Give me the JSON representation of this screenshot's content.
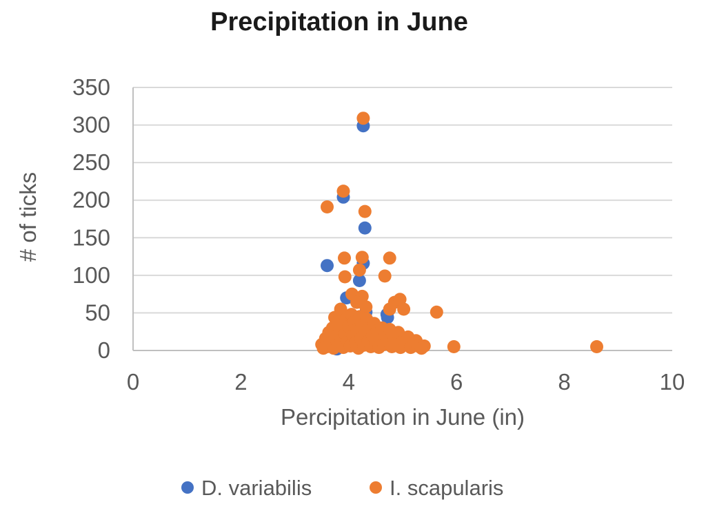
{
  "title": "Precipitation in June",
  "colors": {
    "title_text": "#1a1a1a",
    "axis_text": "#595959",
    "gridline": "#d9d9d9",
    "axis_line": "#bfbfbf",
    "background": "#ffffff",
    "series_blue": "#4472C4",
    "series_orange": "#ED7D31"
  },
  "legend": {
    "items": [
      {
        "label": "D. variabilis",
        "color": "#4472C4"
      },
      {
        "label": "I. scapularis",
        "color": "#ED7D31"
      }
    ]
  },
  "chart_data": {
    "type": "scatter",
    "title": "Precipitation in June",
    "xlabel": "Percipitation in June (in)",
    "ylabel": "# of ticks",
    "xlim": [
      0,
      10
    ],
    "ylim": [
      0,
      350
    ],
    "x_ticks": [
      0,
      2,
      4,
      6,
      8,
      10
    ],
    "y_ticks": [
      0,
      50,
      100,
      150,
      200,
      250,
      300,
      350
    ],
    "grid": "horizontal",
    "legend_position": "bottom",
    "series": [
      {
        "name": "D. variabilis",
        "color": "#4472C4",
        "points": [
          [
            4.27,
            299
          ],
          [
            3.9,
            204
          ],
          [
            4.3,
            163
          ],
          [
            4.27,
            116
          ],
          [
            3.6,
            113
          ],
          [
            4.2,
            93
          ],
          [
            3.96,
            70
          ],
          [
            4.32,
            51
          ],
          [
            4.71,
            48
          ],
          [
            4.72,
            44
          ],
          [
            3.9,
            42
          ],
          [
            4.02,
            31
          ],
          [
            4.91,
            13
          ],
          [
            3.78,
            2
          ]
        ]
      },
      {
        "name": "I. scapularis",
        "color": "#ED7D31",
        "points": [
          [
            4.27,
            309
          ],
          [
            3.9,
            212
          ],
          [
            3.6,
            191
          ],
          [
            4.3,
            185
          ],
          [
            4.25,
            124
          ],
          [
            3.92,
            123
          ],
          [
            4.76,
            123
          ],
          [
            4.2,
            107
          ],
          [
            4.67,
            99
          ],
          [
            3.93,
            98
          ],
          [
            4.06,
            75
          ],
          [
            4.25,
            72
          ],
          [
            4.15,
            64
          ],
          [
            4.85,
            64
          ],
          [
            4.95,
            68
          ],
          [
            4.32,
            58
          ],
          [
            3.85,
            55
          ],
          [
            4.76,
            55
          ],
          [
            5.02,
            55
          ],
          [
            3.74,
            44
          ],
          [
            5.63,
            51
          ],
          [
            5.25,
            13
          ],
          [
            5.4,
            6
          ],
          [
            5.95,
            5
          ],
          [
            8.6,
            5
          ],
          [
            3.5,
            8
          ],
          [
            3.53,
            3
          ],
          [
            3.57,
            16
          ],
          [
            3.6,
            5
          ],
          [
            3.63,
            24
          ],
          [
            3.66,
            10
          ],
          [
            3.7,
            30
          ],
          [
            3.72,
            3
          ],
          [
            3.75,
            18
          ],
          [
            3.78,
            38
          ],
          [
            3.8,
            8
          ],
          [
            3.83,
            27
          ],
          [
            3.86,
            14
          ],
          [
            3.88,
            35
          ],
          [
            3.9,
            4
          ],
          [
            3.93,
            22
          ],
          [
            3.95,
            42
          ],
          [
            3.98,
            12
          ],
          [
            4.0,
            32
          ],
          [
            4.03,
            6
          ],
          [
            4.05,
            48
          ],
          [
            4.08,
            20
          ],
          [
            4.1,
            38
          ],
          [
            4.12,
            10
          ],
          [
            4.15,
            28
          ],
          [
            4.18,
            3
          ],
          [
            4.2,
            45
          ],
          [
            4.23,
            16
          ],
          [
            4.25,
            34
          ],
          [
            4.28,
            7
          ],
          [
            4.3,
            24
          ],
          [
            4.33,
            42
          ],
          [
            4.36,
            12
          ],
          [
            4.38,
            30
          ],
          [
            4.41,
            5
          ],
          [
            4.44,
            20
          ],
          [
            4.47,
            36
          ],
          [
            4.5,
            10
          ],
          [
            4.53,
            26
          ],
          [
            4.56,
            4
          ],
          [
            4.59,
            16
          ],
          [
            4.62,
            30
          ],
          [
            4.65,
            8
          ],
          [
            4.68,
            22
          ],
          [
            4.72,
            13
          ],
          [
            4.76,
            28
          ],
          [
            4.8,
            5
          ],
          [
            4.84,
            18
          ],
          [
            4.88,
            10
          ],
          [
            4.92,
            24
          ],
          [
            4.96,
            4
          ],
          [
            5.0,
            12
          ],
          [
            5.05,
            8
          ],
          [
            5.1,
            18
          ],
          [
            5.15,
            4
          ],
          [
            5.2,
            10
          ],
          [
            5.28,
            6
          ],
          [
            5.35,
            3
          ]
        ]
      }
    ]
  }
}
